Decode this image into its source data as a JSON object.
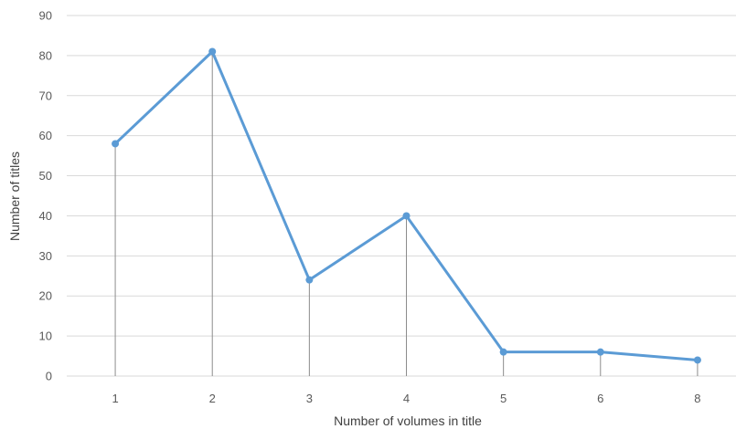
{
  "chart_data": {
    "type": "line",
    "categories": [
      "1",
      "2",
      "3",
      "4",
      "5",
      "6",
      "8"
    ],
    "series": [
      {
        "values": [
          58,
          81,
          24,
          40,
          6,
          6,
          4
        ]
      }
    ],
    "xlabel": "Number of volumes in title",
    "ylabel": "Number of titles",
    "ylim": [
      0,
      90
    ],
    "yticks": [
      0,
      10,
      20,
      30,
      40,
      50,
      60,
      70,
      80,
      90
    ],
    "grid": "horizontal",
    "drop_lines": true,
    "legend": "none",
    "colors": {
      "series": "#5b9bd5",
      "grid": "#d9d9d9",
      "drop_line": "#8c8c8c"
    }
  }
}
